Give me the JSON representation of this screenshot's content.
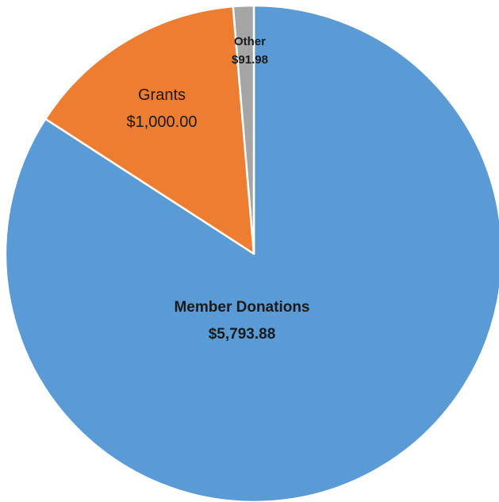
{
  "chart_data": {
    "type": "pie",
    "start_angle_deg": 0,
    "direction": "clockwise",
    "slices": [
      {
        "label": "Member Donations",
        "value": 5793.88,
        "value_label": "$5,793.88",
        "color": "#5b9bd5",
        "label_weight": "bold"
      },
      {
        "label": "Grants",
        "value": 1000.0,
        "value_label": "$1,000.00",
        "color": "#ed7d31",
        "label_weight": "normal"
      },
      {
        "label": "Other",
        "value": 91.98,
        "value_label": "$91.98",
        "color": "#a5a5a5",
        "label_weight": "bold"
      }
    ]
  }
}
